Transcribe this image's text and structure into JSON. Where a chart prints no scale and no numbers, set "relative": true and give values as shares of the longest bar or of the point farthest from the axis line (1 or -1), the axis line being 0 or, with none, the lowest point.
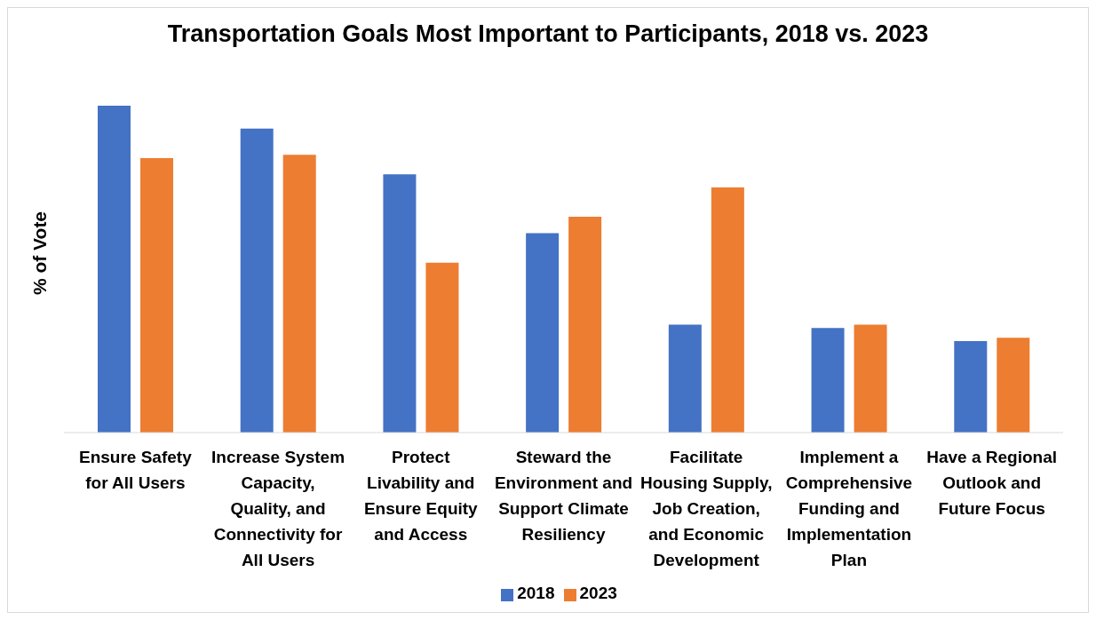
{
  "chart_data": {
    "type": "bar",
    "title": "Transportation Goals Most Important to Participants, 2018 vs. 2023",
    "ylabel": "% of Vote",
    "relative": true,
    "categories": [
      "Ensure Safety for All Users",
      "Increase System Capacity, Quality, and Connectivity for All Users",
      "Protect Livability and Ensure Equity and Access",
      "Steward the Environment and Support Climate Resiliency",
      "Facilitate Housing Supply, Job Creation, and Economic Development",
      "Implement a Comprehensive Funding and Implementation Plan",
      "Have a Regional Outlook and Future Focus"
    ],
    "series": [
      {
        "name": "2018",
        "color": "#4472c4",
        "values": [
          1,
          0.93,
          0.79,
          0.61,
          0.33,
          0.32,
          0.28
        ]
      },
      {
        "name": "2023",
        "color": "#ed7d31",
        "values": [
          0.84,
          0.85,
          0.52,
          0.66,
          0.75,
          0.33,
          0.29
        ]
      }
    ],
    "legend": "bottom"
  }
}
